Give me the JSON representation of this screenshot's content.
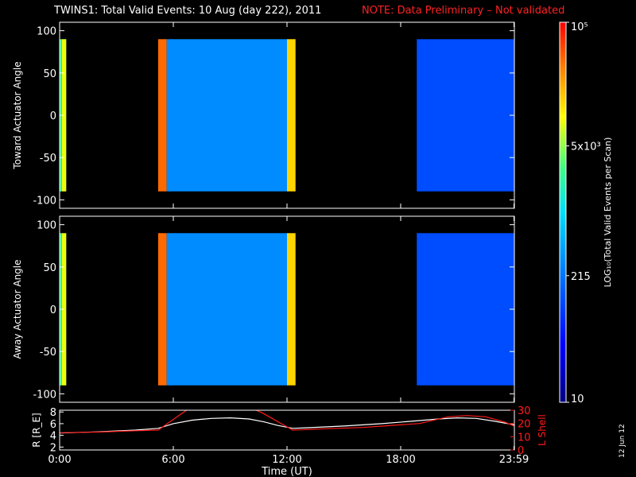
{
  "header": {
    "title": "TWINS1: Total Valid Events: 10 Aug (day 222), 2011",
    "note": "NOTE: Data Preliminary – Not validated"
  },
  "date_stamp": "12 Jun 12",
  "colorbar": {
    "label": "LOG₁₀(Total Valid Events per Scan)",
    "tick_labels": [
      "10",
      "215",
      "5x10³",
      "10⁵"
    ],
    "tick_values": [
      10,
      215,
      5000,
      100000
    ],
    "min": 10,
    "max": 100000,
    "scale": "log"
  },
  "colors": {
    "axes": "#ffffff",
    "note": "#ff2222",
    "lshell": "#ff1a1a",
    "r": "#ffffff",
    "background": "#000000"
  },
  "chart_data": [
    {
      "type": "heatmap",
      "ylabel": "Toward Actuator Angle",
      "xlim": [
        0,
        24
      ],
      "ylim": [
        -110,
        110
      ],
      "y_ticks": [
        100,
        50,
        0,
        -50,
        -100
      ],
      "coverage": [
        {
          "t_start": 0.0,
          "t_end": 0.12,
          "level": 2500
        },
        {
          "t_start": 0.12,
          "t_end": 0.35,
          "level": 9000
        },
        {
          "t_start": 5.2,
          "t_end": 5.65,
          "level": 40000
        },
        {
          "t_start": 5.65,
          "t_end": 12.0,
          "level": 300
        },
        {
          "t_start": 12.0,
          "t_end": 12.45,
          "level": 15000
        },
        {
          "t_start": 18.85,
          "t_end": 24.0,
          "level": 120
        }
      ],
      "angle_range": [
        -90,
        90
      ]
    },
    {
      "type": "heatmap",
      "ylabel": "Away Actuator Angle",
      "xlim": [
        0,
        24
      ],
      "ylim": [
        -110,
        110
      ],
      "y_ticks": [
        100,
        50,
        0,
        -50,
        -100
      ],
      "coverage": [
        {
          "t_start": 0.0,
          "t_end": 0.12,
          "level": 2500
        },
        {
          "t_start": 0.12,
          "t_end": 0.35,
          "level": 9000
        },
        {
          "t_start": 5.2,
          "t_end": 5.65,
          "level": 40000
        },
        {
          "t_start": 5.65,
          "t_end": 12.0,
          "level": 300
        },
        {
          "t_start": 12.0,
          "t_end": 12.45,
          "level": 15000
        },
        {
          "t_start": 18.85,
          "t_end": 24.0,
          "level": 120
        }
      ],
      "angle_range": [
        -90,
        90
      ]
    },
    {
      "type": "line",
      "xlabel": "Time (UT)",
      "x_tick_labels": [
        "0:00",
        "6:00",
        "12:00",
        "18:00",
        "23:59"
      ],
      "x_tick_values": [
        0,
        6,
        12,
        18,
        23.98
      ],
      "xlim": [
        0,
        24
      ],
      "ylabel_left": "R [R_E]",
      "ylabel_right": "L Shell",
      "y_left_ticks": [
        2,
        4,
        6,
        8
      ],
      "ylim_left": [
        1.5,
        8.3
      ],
      "y_right_ticks": [
        0,
        10,
        20,
        30
      ],
      "ylim_right": [
        0,
        30
      ],
      "series": [
        {
          "name": "R",
          "axis": "left",
          "x": [
            0,
            2,
            4,
            5.2,
            6,
            7,
            8,
            9,
            10,
            10.8,
            11.5,
            12.3,
            13,
            15,
            17,
            18.5,
            20,
            21,
            22,
            23,
            24
          ],
          "y": [
            4.4,
            4.6,
            4.9,
            5.2,
            6.0,
            6.6,
            6.9,
            7.0,
            6.8,
            6.3,
            5.7,
            5.2,
            5.3,
            5.6,
            6.0,
            6.4,
            6.8,
            7.0,
            6.9,
            6.4,
            5.8
          ]
        },
        {
          "name": "L Shell",
          "axis": "right",
          "x": [
            0,
            2,
            4,
            5.2,
            6.5,
            6.8,
            10.2,
            10.7,
            12.3,
            14,
            16,
            17,
            19,
            20.5,
            21.5,
            22.5,
            23.5,
            24
          ],
          "y": [
            13,
            13.5,
            14.5,
            15,
            28,
            31,
            31,
            28,
            15,
            16,
            17,
            18,
            20,
            25,
            26,
            25,
            21,
            18
          ]
        }
      ]
    }
  ]
}
